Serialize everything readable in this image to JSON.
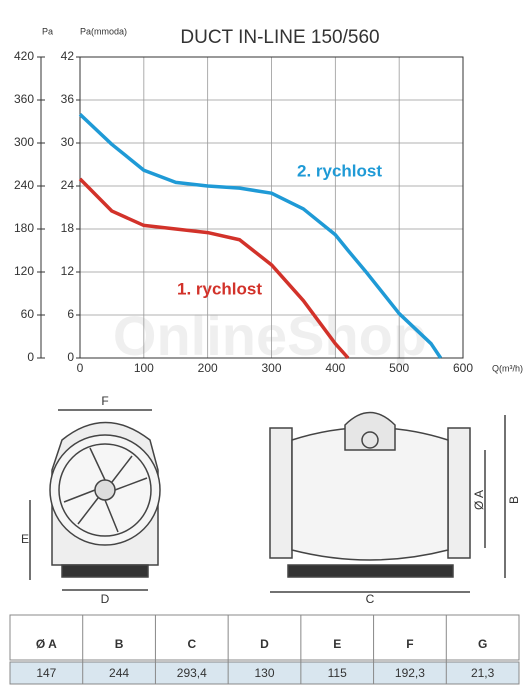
{
  "chart_data": {
    "type": "line",
    "title": "DUCT IN-LINE 150/560",
    "y_label": "Pa",
    "y2_label": "Pa(mmoda)",
    "x_label": "Q(m³/h)",
    "x": [
      0,
      50,
      100,
      150,
      200,
      250,
      300,
      350,
      400,
      420,
      450,
      500,
      550,
      565
    ],
    "series": [
      {
        "name": "2. rychlost",
        "color": "#1f9ad6",
        "values": [
          340,
          298,
          262,
          245,
          240,
          237,
          230,
          208,
          172,
          150,
          118,
          62,
          20,
          0
        ]
      },
      {
        "name": "1. rychlost",
        "color": "#d2322a",
        "values": [
          250,
          205,
          185,
          180,
          175,
          165,
          130,
          80,
          20,
          0,
          null,
          null,
          null,
          null
        ]
      }
    ],
    "xlim": [
      0,
      600
    ],
    "xticks": [
      0,
      100,
      200,
      300,
      400,
      500,
      600
    ],
    "ylim": [
      0,
      420
    ],
    "yticks": [
      0,
      60,
      120,
      180,
      240,
      300,
      360,
      420
    ],
    "y2lim": [
      0,
      42
    ],
    "y2ticks": [
      0,
      6,
      12,
      18,
      24,
      30,
      36,
      42
    ],
    "grid": true,
    "watermark": "OnlineShop"
  },
  "drawing": {
    "labels": {
      "F": "F",
      "E": "E",
      "D": "D",
      "C": "C",
      "A": "Ø A",
      "B": "B"
    }
  },
  "table": {
    "headers": [
      "Ø A",
      "B",
      "C",
      "D",
      "E",
      "F",
      "G"
    ],
    "rows": [
      [
        "147",
        "244",
        "293,4",
        "130",
        "115",
        "192,3",
        "21,3"
      ]
    ]
  }
}
